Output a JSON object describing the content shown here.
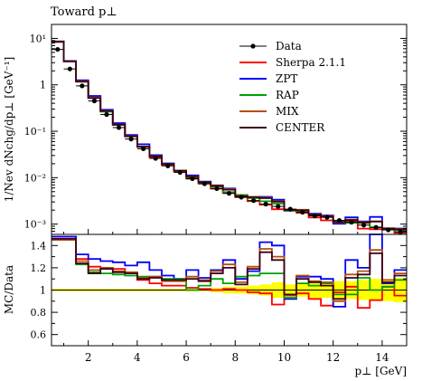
{
  "chart_data": {
    "type": "line",
    "title": "Toward p⊥",
    "xlabel": "p⊥ [GeV]",
    "ylabel_main": "1/Nev dNchg/dp⊥ [GeV⁻¹]",
    "ylabel_ratio": "MC/Data",
    "x_range": [
      0.5,
      15
    ],
    "y_range_main": [
      0.0006,
      20
    ],
    "y_scale_main": "log",
    "y_range_ratio": [
      0.5,
      1.5
    ],
    "x_ticks": [
      "2",
      "4",
      "6",
      "8",
      "10",
      "12",
      "14"
    ],
    "y_ticks_main": [
      "10¹",
      "1",
      "10⁻¹",
      "10⁻²",
      "10⁻³"
    ],
    "y_ticks_ratio": [
      "0.6",
      "0.8",
      "1",
      "1.2",
      "1.4"
    ],
    "legend_position": "top-right",
    "bin_edges": [
      0.5,
      1.0,
      1.5,
      2.0,
      2.5,
      3.0,
      3.5,
      4.0,
      4.5,
      5.0,
      5.5,
      6.0,
      6.5,
      7.0,
      7.5,
      8.0,
      8.5,
      9.0,
      9.5,
      10.0,
      10.5,
      11.0,
      11.5,
      12.0,
      12.5,
      13.0,
      13.5,
      14.0,
      14.5,
      15.0
    ],
    "data": {
      "name": "Data",
      "x": [
        0.75,
        1.25,
        1.75,
        2.25,
        2.75,
        3.25,
        3.75,
        4.25,
        4.75,
        5.25,
        5.75,
        6.25,
        6.75,
        7.25,
        7.75,
        8.25,
        8.75,
        9.25,
        9.75,
        10.25,
        10.75,
        11.25,
        11.75,
        12.25,
        12.75,
        13.25,
        13.75,
        14.25,
        14.75
      ],
      "y": [
        5.8,
        2.2,
        0.95,
        0.45,
        0.23,
        0.12,
        0.068,
        0.042,
        0.026,
        0.018,
        0.013,
        0.0095,
        0.0074,
        0.0058,
        0.0046,
        0.0038,
        0.0032,
        0.0027,
        0.0024,
        0.0021,
        0.0018,
        0.0015,
        0.0014,
        0.0012,
        0.0011,
        0.00095,
        0.00085,
        0.00075,
        0.00068
      ]
    },
    "series": [
      {
        "name": "Sherpa 2.1.1",
        "color": "#ff0000",
        "ratio": [
          1.48,
          1.48,
          1.28,
          1.21,
          1.2,
          1.19,
          1.15,
          1.09,
          1.06,
          1.04,
          1.04,
          1.02,
          1.01,
          1.0,
          1.01,
          1.0,
          0.98,
          0.97,
          0.87,
          0.93,
          0.97,
          0.92,
          0.86,
          0.98,
          1.03,
          0.84,
          0.91,
          1.03,
          0.95
        ]
      },
      {
        "name": "ZPT",
        "color": "#0000ff",
        "ratio": [
          1.48,
          1.48,
          1.32,
          1.28,
          1.26,
          1.25,
          1.22,
          1.25,
          1.18,
          1.13,
          1.1,
          1.18,
          1.11,
          1.18,
          1.27,
          1.1,
          1.17,
          1.43,
          1.4,
          0.92,
          1.12,
          1.12,
          1.1,
          0.85,
          1.27,
          1.2,
          1.68,
          1.06,
          1.18
        ]
      },
      {
        "name": "RAP",
        "color": "#00a000",
        "ratio": [
          1.45,
          1.45,
          1.23,
          1.16,
          1.15,
          1.14,
          1.13,
          1.12,
          1.12,
          1.1,
          1.1,
          1.0,
          1.04,
          1.1,
          1.06,
          1.12,
          1.13,
          1.15,
          1.15,
          0.93,
          1.06,
          1.04,
          1.06,
          0.96,
          0.96,
          1.11,
          1.0,
          1.03,
          1.09
        ]
      },
      {
        "name": "MIX",
        "color": "#b05010",
        "ratio": [
          1.45,
          1.45,
          1.26,
          1.18,
          1.2,
          1.17,
          1.16,
          1.11,
          1.12,
          1.08,
          1.08,
          1.12,
          1.09,
          1.17,
          1.23,
          1.07,
          1.21,
          1.37,
          1.3,
          0.95,
          1.13,
          1.08,
          1.07,
          0.9,
          1.14,
          1.17,
          1.36,
          1.09,
          1.15
        ]
      },
      {
        "name": "CENTER",
        "color": "#400018",
        "ratio": [
          1.46,
          1.46,
          1.24,
          1.15,
          1.19,
          1.16,
          1.15,
          1.1,
          1.11,
          1.09,
          1.09,
          1.1,
          1.08,
          1.15,
          1.2,
          1.05,
          1.19,
          1.34,
          1.27,
          0.96,
          1.1,
          1.07,
          1.04,
          0.92,
          1.11,
          1.14,
          1.33,
          1.07,
          1.13
        ]
      }
    ],
    "uncertainty_band": {
      "color": "#ffff00",
      "ratio_half_width": [
        0.01,
        0.01,
        0.01,
        0.01,
        0.01,
        0.01,
        0.01,
        0.01,
        0.01,
        0.01,
        0.01,
        0.01,
        0.01,
        0.02,
        0.03,
        0.03,
        0.04,
        0.05,
        0.07,
        0.05,
        0.06,
        0.07,
        0.07,
        0.08,
        0.08,
        0.09,
        0.1,
        0.1,
        0.11
      ]
    }
  }
}
